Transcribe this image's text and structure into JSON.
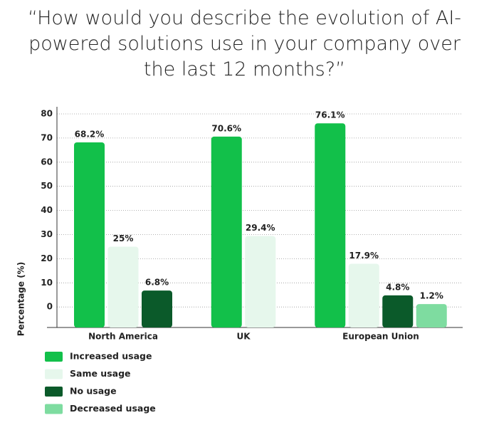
{
  "chart_data": {
    "type": "bar",
    "title": "“How would you describe the evolution of AI-powered solutions use in your company over the last 12 months?”",
    "y_label": "Percentage (%)",
    "categories": [
      "North America",
      "UK",
      "European Union"
    ],
    "series": [
      {
        "name": "Increased usage",
        "color": "#12c04a",
        "values": [
          68.2,
          70.6,
          76.1
        ],
        "value_labels": [
          "68.2%",
          "70.6%",
          "76.1%"
        ]
      },
      {
        "name": "Same usage",
        "color": "#e6f7ec",
        "values": [
          25,
          29.4,
          17.9
        ],
        "value_labels": [
          "25%",
          "29.4%",
          "17.9%"
        ]
      },
      {
        "name": "No usage",
        "color": "#0b5a2a",
        "values": [
          6.8,
          null,
          4.8
        ],
        "value_labels": [
          "6.8%",
          null,
          "4.8%"
        ]
      },
      {
        "name": "Decreased usage",
        "color": "#7edca0",
        "values": [
          null,
          null,
          1.2
        ],
        "value_labels": [
          null,
          null,
          "1.2%"
        ]
      }
    ],
    "ylim": [
      -8.5,
      80
    ],
    "yticks": [
      0,
      10,
      20,
      30,
      40,
      50,
      60,
      70,
      80
    ],
    "grid": true
  }
}
